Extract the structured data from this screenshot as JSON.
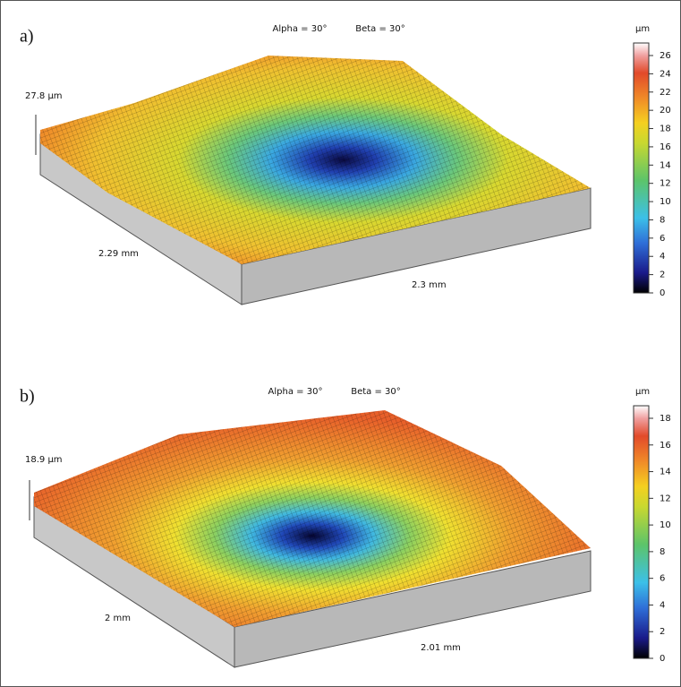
{
  "panels": [
    {
      "label": "a)",
      "alpha": "Alpha = 30°",
      "beta": "Beta = 30°",
      "height": "27.8 µm",
      "x_extent": "2.29 mm",
      "y_extent": "2.3 mm",
      "colorbar": {
        "unit": "µm",
        "ticks": [
          "0",
          "2",
          "4",
          "6",
          "8",
          "10",
          "12",
          "14",
          "16",
          "18",
          "20",
          "22",
          "24",
          "26"
        ]
      }
    },
    {
      "label": "b)",
      "alpha": "Alpha = 30°",
      "beta": "Beta = 30°",
      "height": "18.9 µm",
      "x_extent": "2 mm",
      "y_extent": "2.01 mm",
      "colorbar": {
        "unit": "µm",
        "ticks": [
          "0",
          "2",
          "4",
          "6",
          "8",
          "10",
          "12",
          "14",
          "16",
          "18"
        ]
      }
    }
  ]
}
